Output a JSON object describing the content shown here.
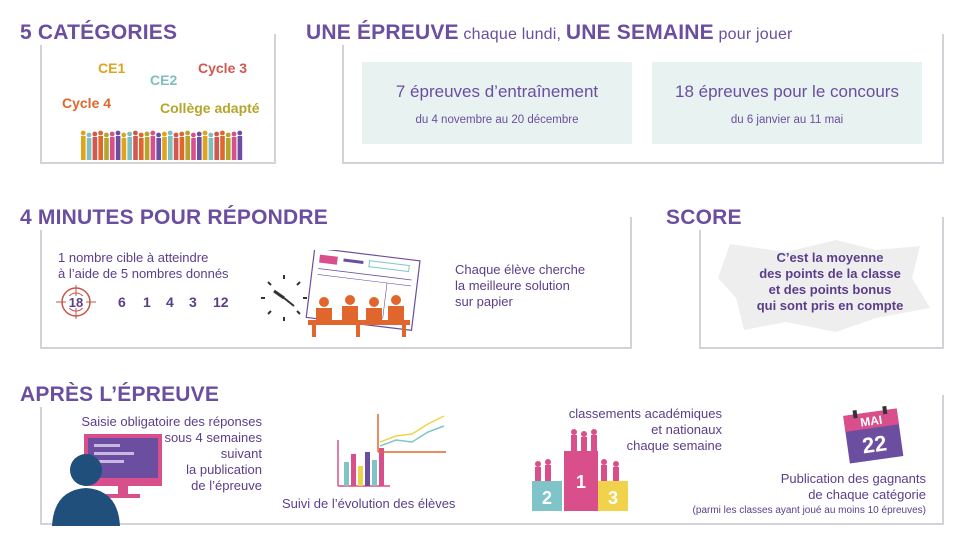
{
  "categories": {
    "title": "5 CATÉGORIES",
    "items": [
      {
        "label": "CE1",
        "color": "#e0a41c"
      },
      {
        "label": "CE2",
        "color": "#7fbfc0"
      },
      {
        "label": "Cycle 3",
        "color": "#d2584f"
      },
      {
        "label": "Cycle 4",
        "color": "#e0662e"
      },
      {
        "label": "Collège adapté",
        "color": "#b5a52b"
      }
    ]
  },
  "epreuve": {
    "title_a": "UNE ÉPREUVE",
    "title_b": " chaque lundi, ",
    "title_c": "UNE SEMAINE",
    "title_d": " pour jouer",
    "training_title": "7 épreuves d’entraînement",
    "training_dates": "du 4 novembre au 20 décembre",
    "contest_title": "18 épreuves pour le concours",
    "contest_dates": "du 6 janvier au 11 mai"
  },
  "minutes": {
    "title": "4 MINUTES POUR RÉPONDRE",
    "target_line1": "1 nombre cible à atteindre",
    "target_line2": "à l’aide de 5 nombres donnés",
    "target": "18",
    "numbers": [
      "6",
      "1",
      "4",
      "3",
      "12"
    ],
    "student_line1": "Chaque élève cherche",
    "student_line2": "la meilleure solution",
    "student_line3": "sur papier"
  },
  "score": {
    "title": "SCORE",
    "line1": "C’est la moyenne",
    "line2": "des points de la classe",
    "line3": "et des points bonus",
    "line4": "qui sont pris en compte"
  },
  "apres": {
    "title": "APRÈS L’ÉPREUVE",
    "saisie": [
      "Saisie obligatoire des réponses",
      "sous 4 semaines",
      "suivant",
      "la publication",
      "de l’épreuve"
    ],
    "suivi": "Suivi de l’évolution des élèves",
    "classements": [
      "classements académiques",
      "et nationaux",
      "chaque semaine"
    ],
    "podium": [
      "2",
      "1",
      "3"
    ],
    "cal_month": "MAI",
    "cal_day": "22",
    "publication": [
      "Publication des gagnants",
      "de chaque catégorie"
    ],
    "note": "(parmi les classes ayant joué au moins 10 épreuves)"
  },
  "colors": {
    "purple": "#6b4ea0",
    "frame": "#d2d2d8",
    "light_box": "#e8f2f1",
    "orange": "#e0662e",
    "pink": "#d94f8b",
    "teal": "#7fc4c8",
    "yellow": "#f0d34a"
  }
}
